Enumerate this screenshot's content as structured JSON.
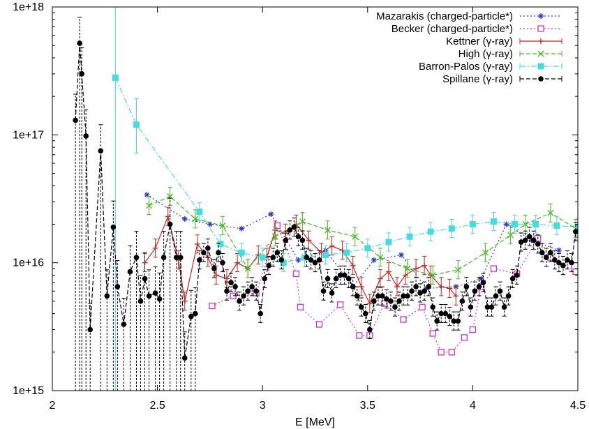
{
  "chart_data": {
    "type": "scatter",
    "xlabel": "E [MeV]",
    "ylabel": "",
    "xlim": [
      2,
      4.5
    ],
    "ylim": [
      1000000000000000.0,
      1e+18
    ],
    "yscale": "log",
    "xticks": [
      2,
      2.5,
      3,
      3.5,
      4,
      4.5
    ],
    "xtick_labels": [
      "2",
      "2.5",
      "3",
      "3.5",
      "4",
      "4.5"
    ],
    "yticks": [
      1000000000000000.0,
      1e+16,
      1e+17,
      1e+18
    ],
    "ytick_labels": [
      "1e+15",
      "1e+16",
      "1e+17",
      "1e+18"
    ],
    "legend_position": "top-right",
    "series": [
      {
        "name": "Mazarakis (charged-particle*)",
        "color": "#3333cc",
        "marker": "asterisk",
        "line": "dotted",
        "errorbars": false,
        "points": [
          [
            2.45,
            3.4e+16
          ],
          [
            2.63,
            2.2e+16
          ],
          [
            2.75,
            2e+16
          ],
          [
            2.9,
            1.85e+16
          ],
          [
            3.04,
            2.4e+16
          ],
          [
            3.17,
            1.05e+16
          ],
          [
            3.3,
            1.25e+16
          ],
          [
            3.43,
            6500000000000000.0
          ],
          [
            3.53,
            1.05e+16
          ],
          [
            3.66,
            1.15e+16
          ],
          [
            3.78,
            6300000000000000.0
          ],
          [
            3.92,
            6500000000000000.0
          ],
          [
            4.04,
            7500000000000000.0
          ],
          [
            4.16,
            2e+16
          ],
          [
            4.28,
            1.5e+16
          ],
          [
            4.41,
            1.25e+16
          ]
        ]
      },
      {
        "name": "Becker (charged-particle*)",
        "color": "#cc33cc",
        "marker": "open-square",
        "line": "dotted",
        "errorbars": false,
        "points": [
          [
            2.76,
            4600000000000000.0
          ],
          [
            2.86,
            5500000000000000.0
          ],
          [
            2.97,
            5800000000000000.0
          ],
          [
            3.07,
            1.95e+16
          ],
          [
            3.16,
            8200000000000000.0
          ],
          [
            3.18,
            4500000000000000.0
          ],
          [
            3.27,
            3300000000000000.0
          ],
          [
            3.37,
            4700000000000000.0
          ],
          [
            3.46,
            2700000000000000.0
          ],
          [
            3.51,
            2700000000000000.0
          ],
          [
            3.58,
            4800000000000000.0
          ],
          [
            3.67,
            3600000000000000.0
          ],
          [
            3.76,
            4500000000000000.0
          ],
          [
            3.81,
            2800000000000000.0
          ],
          [
            3.85,
            2000000000000000.0
          ],
          [
            3.9,
            2000000000000000.0
          ],
          [
            3.96,
            2600000000000000.0
          ],
          [
            4.0,
            3000000000000000.0
          ],
          [
            4.04,
            6500000000000000.0
          ],
          [
            4.1,
            9000000000000000.0
          ],
          [
            4.21,
            8200000000000000.0
          ],
          [
            4.31,
            1.55e+16
          ],
          [
            4.37,
            1.1e+16
          ],
          [
            4.49,
            8500000000000000.0
          ]
        ]
      },
      {
        "name": "Kettner (γ-ray)",
        "color": "#cc2222",
        "marker": "plus",
        "line": "solid",
        "errorbars": true,
        "points": [
          [
            2.44,
            1e+16
          ],
          [
            2.49,
            1.3e+16
          ],
          [
            2.55,
            2.3e+16
          ],
          [
            2.6,
            1.05e+16
          ],
          [
            2.63,
            5000000000000000.0
          ],
          [
            2.69,
            1.4e+16
          ],
          [
            2.74,
            1.1e+16
          ],
          [
            2.78,
            8000000000000000.0
          ],
          [
            2.83,
            7500000000000000.0
          ],
          [
            2.88,
            1e+16
          ],
          [
            2.93,
            9000000000000000.0
          ],
          [
            2.98,
            1.15e+16
          ],
          [
            3.02,
            1.1e+16
          ],
          [
            3.06,
            1.8e+16
          ],
          [
            3.11,
            1.7e+16
          ],
          [
            3.16,
            2e+16
          ],
          [
            3.22,
            1.5e+16
          ],
          [
            3.28,
            1.2e+16
          ],
          [
            3.33,
            1.35e+16
          ],
          [
            3.38,
            1.25e+16
          ],
          [
            3.43,
            9500000000000000.0
          ],
          [
            3.47,
            6500000000000000.0
          ],
          [
            3.51,
            4800000000000000.0
          ],
          [
            3.56,
            7500000000000000.0
          ],
          [
            3.6,
            8500000000000000.0
          ],
          [
            3.64,
            6500000000000000.0
          ],
          [
            3.68,
            8000000000000000.0
          ],
          [
            3.73,
            9000000000000000.0
          ],
          [
            3.77,
            9500000000000000.0
          ],
          [
            3.8,
            8000000000000000.0
          ],
          [
            3.85,
            6500000000000000.0
          ],
          [
            3.89,
            6300000000000000.0
          ],
          [
            3.92,
            5500000000000000.0
          ]
        ]
      },
      {
        "name": "High (γ-ray)",
        "color": "#44bb22",
        "marker": "x",
        "line": "dashed",
        "errorbars": true,
        "points": [
          [
            2.46,
            2.8e+16
          ],
          [
            2.56,
            3.3e+16
          ],
          [
            2.68,
            2.2e+16
          ],
          [
            2.81,
            1.95e+16
          ],
          [
            2.93,
            9000000000000000.0
          ],
          [
            3.06,
            1.6e+16
          ],
          [
            3.19,
            2.1e+16
          ],
          [
            3.31,
            1.8e+16
          ],
          [
            3.44,
            1.6e+16
          ],
          [
            3.56,
            1.1e+16
          ],
          [
            3.69,
            9000000000000000.0
          ],
          [
            3.81,
            8000000000000000.0
          ],
          [
            3.93,
            8800000000000000.0
          ],
          [
            4.06,
            1.2e+16
          ],
          [
            4.18,
            1.65e+16
          ],
          [
            4.25,
            2e+16
          ],
          [
            4.37,
            2.45e+16
          ],
          [
            4.49,
            1.85e+16
          ]
        ]
      },
      {
        "name": "Barron-Palos (γ-ray)",
        "color": "#44dddd",
        "marker": "filled-square",
        "line": "dashdot",
        "errorbars": true,
        "points": [
          [
            2.3,
            2.8e+17
          ],
          [
            2.4,
            1.2e+17
          ],
          [
            2.7,
            2.5e+16
          ],
          [
            2.8,
            1.4e+16
          ],
          [
            2.9,
            1.2e+16
          ],
          [
            3.0,
            1.1e+16
          ],
          [
            3.1,
            1e+16
          ],
          [
            3.2,
            1.1e+16
          ],
          [
            3.3,
            1.15e+16
          ],
          [
            3.4,
            1.2e+16
          ],
          [
            3.5,
            1.3e+16
          ],
          [
            3.6,
            1.45e+16
          ],
          [
            3.7,
            1.6e+16
          ],
          [
            3.8,
            1.75e+16
          ],
          [
            3.9,
            1.85e+16
          ],
          [
            4.0,
            2e+16
          ],
          [
            4.1,
            2.1e+16
          ],
          [
            4.2,
            2e+16
          ],
          [
            4.3,
            2e+16
          ],
          [
            4.4,
            1.95e+16
          ],
          [
            4.5,
            1.9e+16
          ]
        ]
      },
      {
        "name": "Spillane (γ-ray)",
        "color": "#000000",
        "marker": "filled-circle",
        "line": "dashed",
        "errorbars": true,
        "points": [
          [
            2.11,
            1.3e+17
          ],
          [
            2.13,
            5.2e+17
          ],
          [
            2.14,
            3e+17
          ],
          [
            2.16,
            9.8e+16
          ],
          [
            2.18,
            3000000000000000.0
          ],
          [
            2.23,
            7.5e+16
          ],
          [
            2.26,
            5500000000000000.0
          ],
          [
            2.29,
            1.9e+16
          ],
          [
            2.31,
            6500000000000000.0
          ],
          [
            2.34,
            3300000000000000.0
          ],
          [
            2.37,
            8500000000000000.0
          ],
          [
            2.4,
            1.1e+16
          ],
          [
            2.42,
            5000000000000000.0
          ],
          [
            2.44,
            7500000000000000.0
          ],
          [
            2.46,
            5500000000000000.0
          ],
          [
            2.49,
            5800000000000000.0
          ],
          [
            2.51,
            5200000000000000.0
          ],
          [
            2.53,
            1.1e+16
          ],
          [
            2.56,
            2e+16
          ],
          [
            2.59,
            1.1e+16
          ],
          [
            2.61,
            1.1e+16
          ],
          [
            2.63,
            1800000000000000.0
          ],
          [
            2.66,
            3800000000000000.0
          ],
          [
            2.68,
            4000000000000000.0
          ],
          [
            2.7,
            1.05e+16
          ],
          [
            2.72,
            1.2e+16
          ],
          [
            2.74,
            1.3e+16
          ],
          [
            2.77,
            9000000000000000.0
          ],
          [
            2.79,
            1.2e+16
          ],
          [
            2.81,
            1e+16
          ],
          [
            2.83,
            6000000000000000.0
          ],
          [
            2.85,
            7000000000000000.0
          ],
          [
            2.87,
            6500000000000000.0
          ],
          [
            2.89,
            5000000000000000.0
          ],
          [
            2.91,
            5500000000000000.0
          ],
          [
            2.93,
            6000000000000000.0
          ],
          [
            2.95,
            6500000000000000.0
          ],
          [
            2.97,
            6000000000000000.0
          ],
          [
            2.99,
            4000000000000000.0
          ],
          [
            3.01,
            7500000000000000.0
          ],
          [
            3.03,
            9500000000000000.0
          ],
          [
            3.05,
            1.1e+16
          ],
          [
            3.07,
            1.2e+16
          ],
          [
            3.09,
            1.05e+16
          ],
          [
            3.11,
            1.5e+16
          ],
          [
            3.13,
            1.8e+16
          ],
          [
            3.15,
            1.9e+16
          ],
          [
            3.17,
            1.6e+16
          ],
          [
            3.19,
            1.5e+16
          ],
          [
            3.21,
            1.1e+16
          ],
          [
            3.23,
            1.05e+16
          ],
          [
            3.25,
            1e+16
          ],
          [
            3.27,
            1.05e+16
          ],
          [
            3.29,
            6000000000000000.0
          ],
          [
            3.31,
            7500000000000000.0
          ],
          [
            3.33,
            5800000000000000.0
          ],
          [
            3.35,
            7500000000000000.0
          ],
          [
            3.37,
            8000000000000000.0
          ],
          [
            3.39,
            8000000000000000.0
          ],
          [
            3.41,
            7500000000000000.0
          ],
          [
            3.43,
            6500000000000000.0
          ],
          [
            3.45,
            5500000000000000.0
          ],
          [
            3.47,
            4500000000000000.0
          ],
          [
            3.49,
            4000000000000000.0
          ],
          [
            3.51,
            3000000000000000.0
          ],
          [
            3.53,
            5000000000000000.0
          ],
          [
            3.55,
            5500000000000000.0
          ],
          [
            3.57,
            5500000000000000.0
          ],
          [
            3.59,
            5200000000000000.0
          ],
          [
            3.61,
            5000000000000000.0
          ],
          [
            3.63,
            4500000000000000.0
          ],
          [
            3.65,
            5000000000000000.0
          ],
          [
            3.67,
            5500000000000000.0
          ],
          [
            3.69,
            5500000000000000.0
          ],
          [
            3.71,
            6000000000000000.0
          ],
          [
            3.73,
            6500000000000000.0
          ],
          [
            3.75,
            5800000000000000.0
          ],
          [
            3.77,
            6000000000000000.0
          ],
          [
            3.79,
            6500000000000000.0
          ],
          [
            3.81,
            4500000000000000.0
          ],
          [
            3.83,
            3500000000000000.0
          ],
          [
            3.85,
            4000000000000000.0
          ],
          [
            3.87,
            4000000000000000.0
          ],
          [
            3.89,
            3800000000000000.0
          ],
          [
            3.91,
            3500000000000000.0
          ],
          [
            3.93,
            3500000000000000.0
          ],
          [
            3.95,
            5000000000000000.0
          ],
          [
            3.97,
            6500000000000000.0
          ],
          [
            3.99,
            4500000000000000.0
          ],
          [
            4.01,
            6000000000000000.0
          ],
          [
            4.03,
            6500000000000000.0
          ],
          [
            4.05,
            7000000000000000.0
          ],
          [
            4.07,
            4500000000000000.0
          ],
          [
            4.09,
            4500000000000000.0
          ],
          [
            4.11,
            5500000000000000.0
          ],
          [
            4.13,
            6000000000000000.0
          ],
          [
            4.15,
            4500000000000000.0
          ],
          [
            4.17,
            5500000000000000.0
          ],
          [
            4.19,
            7500000000000000.0
          ],
          [
            4.21,
            8000000000000000.0
          ],
          [
            4.23,
            1.45e+16
          ],
          [
            4.25,
            1.5e+16
          ],
          [
            4.27,
            1.6e+16
          ],
          [
            4.29,
            1.5e+16
          ],
          [
            4.31,
            1.4e+16
          ],
          [
            4.33,
            1.2e+16
          ],
          [
            4.35,
            1.1e+16
          ],
          [
            4.37,
            1.2e+16
          ],
          [
            4.39,
            1.05e+16
          ],
          [
            4.41,
            1e+16
          ],
          [
            4.43,
            9500000000000000.0
          ],
          [
            4.45,
            1.05e+16
          ],
          [
            4.47,
            1e+16
          ],
          [
            4.49,
            1.75e+16
          ]
        ]
      }
    ]
  }
}
